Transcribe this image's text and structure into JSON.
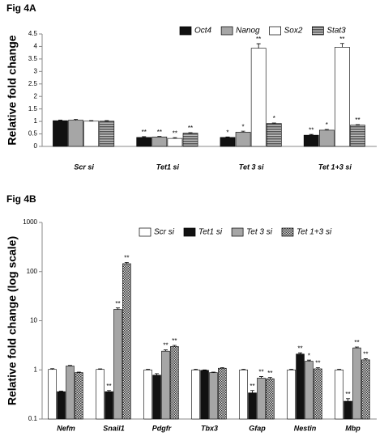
{
  "chart_data": [
    {
      "type": "bar",
      "title": "Fig 4A",
      "ylabel": "Relative fold change",
      "categories": [
        "Scr si",
        "Tet1 si",
        "Tet 3 si",
        "Tet 1+3 si"
      ],
      "series": [
        {
          "name": "Oct4",
          "color": "#111111",
          "pattern": "solid",
          "values": [
            1.03,
            0.36,
            0.36,
            0.45
          ],
          "errors": [
            0.02,
            0.03,
            0.02,
            0.03
          ],
          "significance": [
            null,
            "**",
            "*",
            "**"
          ]
        },
        {
          "name": "Nanog",
          "color": "#a6a6a6",
          "pattern": "solid",
          "values": [
            1.05,
            0.38,
            0.57,
            0.65
          ],
          "errors": [
            0.03,
            0.02,
            0.04,
            0.03
          ],
          "significance": [
            null,
            "**",
            "*",
            "*"
          ]
        },
        {
          "name": "Sox2",
          "color": "#ffffff",
          "pattern": "solid",
          "values": [
            1.01,
            0.32,
            3.93,
            3.97
          ],
          "errors": [
            0.02,
            0.03,
            0.18,
            0.15
          ],
          "significance": [
            null,
            "**",
            "**",
            "**"
          ]
        },
        {
          "name": "Stat3",
          "color": "#555555",
          "pattern": "hstripes",
          "values": [
            1.01,
            0.53,
            0.92,
            0.85
          ],
          "errors": [
            0.02,
            0.02,
            0.02,
            0.02
          ],
          "significance": [
            null,
            "**",
            "*",
            "**"
          ]
        }
      ],
      "ylim": [
        0,
        4.5
      ],
      "yticks": [
        0,
        0.5,
        1,
        1.5,
        2,
        2.5,
        3,
        3.5,
        4,
        4.5
      ],
      "log_scale": false,
      "grid": false,
      "legend": "top"
    },
    {
      "type": "bar",
      "title": "Fig 4B",
      "ylabel": "Relative fold change (log scale)",
      "categories": [
        "Nefm",
        "Snail1",
        "Pdgfr",
        "Tbx3",
        "Gfap",
        "Nestin",
        "Mbp"
      ],
      "series": [
        {
          "name": "Scr si",
          "color": "#ffffff",
          "pattern": "solid",
          "values": [
            1.02,
            1.02,
            1.0,
            1.0,
            1.0,
            1.0,
            1.0
          ],
          "errors": [
            0.04,
            0.03,
            0.03,
            0.03,
            0.03,
            0.03,
            0.03
          ],
          "significance": [
            null,
            null,
            null,
            null,
            null,
            null,
            null
          ]
        },
        {
          "name": "Tet1 si",
          "color": "#111111",
          "pattern": "solid",
          "values": [
            0.36,
            0.36,
            0.78,
            0.98,
            0.34,
            2.1,
            0.23
          ],
          "errors": [
            0.01,
            0.02,
            0.06,
            0.02,
            0.04,
            0.12,
            0.03
          ],
          "significance": [
            null,
            "**",
            null,
            null,
            "**",
            "**",
            "**"
          ]
        },
        {
          "name": "Tet 3 si",
          "color": "#a6a6a6",
          "pattern": "solid",
          "values": [
            1.2,
            17,
            2.4,
            0.88,
            0.68,
            1.5,
            2.8
          ],
          "errors": [
            0.03,
            1.2,
            0.15,
            0.02,
            0.05,
            0.08,
            0.12
          ],
          "significance": [
            null,
            "**",
            "**",
            null,
            "**",
            "*",
            "**"
          ]
        },
        {
          "name": "Tet 1+3 si",
          "color": "#333333",
          "pattern": "checker",
          "values": [
            0.88,
            145,
            3.0,
            1.08,
            0.66,
            1.05,
            1.6
          ],
          "errors": [
            0.02,
            8,
            0.15,
            0.03,
            0.04,
            0.06,
            0.08
          ],
          "significance": [
            null,
            "**",
            "**",
            null,
            "**",
            "**",
            "**"
          ]
        }
      ],
      "ylim": [
        0.1,
        1000
      ],
      "yticks": [
        0.1,
        1,
        10,
        100,
        1000
      ],
      "log_scale": true,
      "grid": false,
      "legend": "top"
    }
  ]
}
